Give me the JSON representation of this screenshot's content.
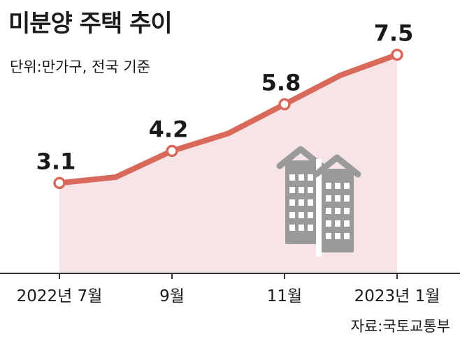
{
  "chart_data": {
    "type": "area",
    "title": "미분양 주택 추이",
    "subtitle": "단위:만가구, 전국 기준",
    "source": "자료:국토교통부",
    "x": [
      0,
      1,
      2,
      3,
      4,
      5,
      6
    ],
    "values": [
      3.1,
      3.3,
      4.2,
      4.8,
      5.8,
      6.8,
      7.5
    ],
    "marked_points": [
      {
        "index": 0,
        "label": "3.1"
      },
      {
        "index": 2,
        "label": "4.2"
      },
      {
        "index": 4,
        "label": "5.8"
      },
      {
        "index": 6,
        "label": "7.5"
      }
    ],
    "tick_labels": [
      {
        "index": 0,
        "label": "2022년 7월"
      },
      {
        "index": 2,
        "label": "9월"
      },
      {
        "index": 4,
        "label": "11월"
      },
      {
        "index": 6,
        "label": "2023년 1월"
      }
    ],
    "ylim": [
      0,
      8.3
    ],
    "grid": false,
    "colors": {
      "line": "#d9695a",
      "fill": "#f7e4e6",
      "marker_fill": "#ffffff",
      "axis": "#333333",
      "building": "#9a9a9a",
      "window": "#ffffff"
    },
    "decoration_icon": "apartment-building-icon"
  }
}
